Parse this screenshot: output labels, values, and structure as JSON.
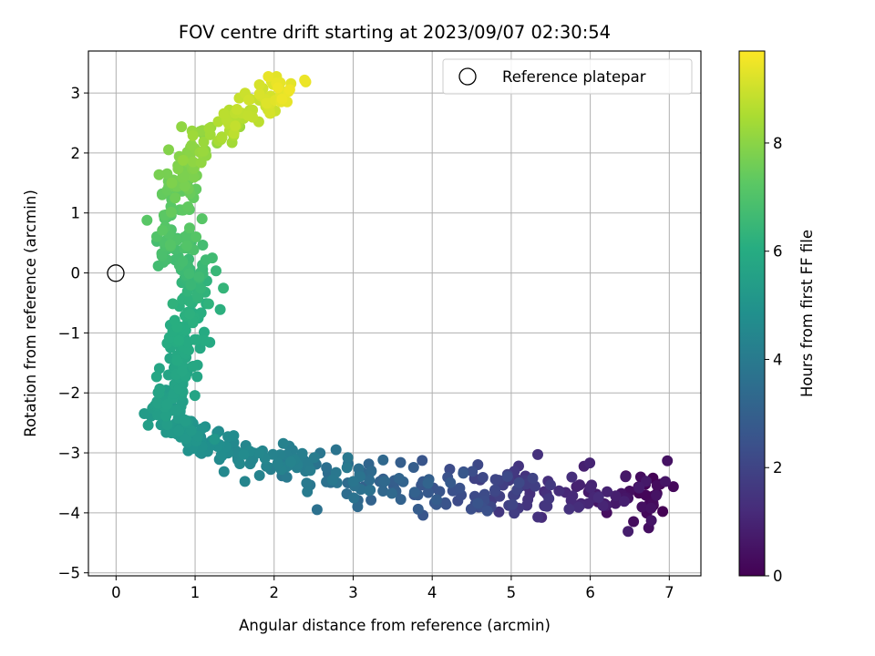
{
  "chart_data": {
    "type": "scatter",
    "title": "FOV centre drift starting at 2023/09/07 02:30:54",
    "xlabel": "Angular distance from reference (arcmin)",
    "ylabel": "Rotation from reference (arcmin)",
    "xlim": [
      -0.35,
      7.4
    ],
    "ylim": [
      -5.05,
      3.7
    ],
    "xticks": [
      "0",
      "1",
      "2",
      "3",
      "4",
      "5",
      "6",
      "7"
    ],
    "yticks": [
      "−5",
      "−4",
      "−3",
      "−2",
      "−1",
      "0",
      "1",
      "2",
      "3"
    ],
    "grid": true,
    "legend": {
      "placement": "top-right",
      "label": "Reference platepar"
    },
    "reference_point": {
      "x": 0,
      "y": 0
    },
    "colorbar": {
      "label": "Hours from first FF file",
      "colormap": "viridis",
      "range": [
        0,
        9.7
      ],
      "ticks": [
        "0",
        "2",
        "4",
        "6",
        "8"
      ]
    },
    "path": [
      {
        "x": 6.95,
        "y": -3.8,
        "t": 0.0
      },
      {
        "x": 6.5,
        "y": -3.75,
        "t": 0.5
      },
      {
        "x": 6.0,
        "y": -3.7,
        "t": 1.0
      },
      {
        "x": 5.4,
        "y": -3.75,
        "t": 1.5
      },
      {
        "x": 4.8,
        "y": -3.65,
        "t": 2.0
      },
      {
        "x": 4.2,
        "y": -3.6,
        "t": 2.5
      },
      {
        "x": 3.6,
        "y": -3.55,
        "t": 3.0
      },
      {
        "x": 3.0,
        "y": -3.45,
        "t": 3.5
      },
      {
        "x": 2.5,
        "y": -3.3,
        "t": 4.0
      },
      {
        "x": 2.0,
        "y": -3.1,
        "t": 4.3
      },
      {
        "x": 1.5,
        "y": -2.95,
        "t": 4.6
      },
      {
        "x": 1.05,
        "y": -2.8,
        "t": 4.9
      },
      {
        "x": 0.75,
        "y": -2.6,
        "t": 5.2
      },
      {
        "x": 0.6,
        "y": -2.3,
        "t": 5.4
      },
      {
        "x": 0.7,
        "y": -1.95,
        "t": 5.6
      },
      {
        "x": 0.85,
        "y": -1.5,
        "t": 5.8
      },
      {
        "x": 0.9,
        "y": -1.0,
        "t": 6.0
      },
      {
        "x": 1.0,
        "y": -0.5,
        "t": 6.2
      },
      {
        "x": 1.0,
        "y": 0.0,
        "t": 6.5
      },
      {
        "x": 0.75,
        "y": 0.35,
        "t": 6.8
      },
      {
        "x": 0.7,
        "y": 0.8,
        "t": 7.1
      },
      {
        "x": 0.75,
        "y": 1.3,
        "t": 7.4
      },
      {
        "x": 0.9,
        "y": 1.8,
        "t": 7.8
      },
      {
        "x": 1.15,
        "y": 2.2,
        "t": 8.2
      },
      {
        "x": 1.5,
        "y": 2.6,
        "t": 8.7
      },
      {
        "x": 1.9,
        "y": 2.9,
        "t": 9.1
      },
      {
        "x": 2.2,
        "y": 3.1,
        "t": 9.5
      }
    ]
  }
}
